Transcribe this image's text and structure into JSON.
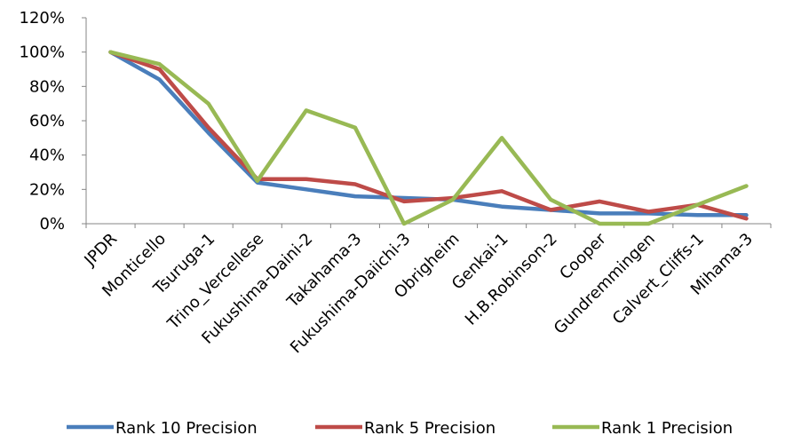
{
  "chart_data": {
    "type": "line",
    "categories": [
      "JPDR",
      "Monticello",
      "Tsuruga-1",
      "Trino_Vercellese",
      "Fukushima-Daini-2",
      "Takahama-3",
      "Fukushima-Daiichi-3",
      "Obrigheim",
      "Genkai-1",
      "H.B.Robinson-2",
      "Cooper",
      "Gundremmingen",
      "Calvert_Cliffs-1",
      "Mihama-3"
    ],
    "series": [
      {
        "name": "Rank 10 Precision",
        "color": "#4a7ebb",
        "values": [
          100,
          84,
          53,
          24,
          20,
          16,
          15,
          14,
          10,
          8,
          6,
          6,
          5,
          5
        ]
      },
      {
        "name": "Rank 5 Precision",
        "color": "#be4b48",
        "values": [
          100,
          90,
          56,
          26,
          26,
          23,
          13,
          15,
          19,
          8,
          13,
          7,
          11,
          3
        ]
      },
      {
        "name": "Rank 1 Precision",
        "color": "#98b954",
        "values": [
          100,
          93,
          70,
          25,
          66,
          56,
          0,
          14,
          50,
          14,
          0,
          0,
          11,
          22
        ]
      }
    ],
    "y_ticks": [
      "0%",
      "20%",
      "40%",
      "60%",
      "80%",
      "100%",
      "120%"
    ],
    "ylim": [
      0,
      120
    ],
    "grid": false,
    "legend_position": "bottom"
  }
}
